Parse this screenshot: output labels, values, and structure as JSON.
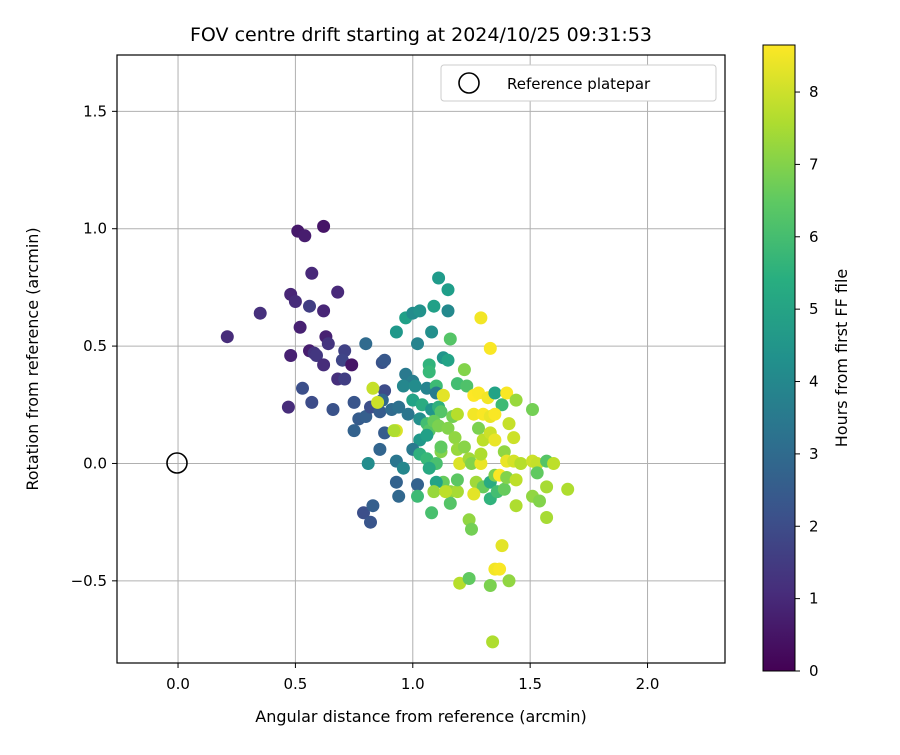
{
  "chart_data": {
    "type": "scatter",
    "title": "FOV centre drift starting at 2024/10/25 09:31:53",
    "xlabel": "Angular distance from reference (arcmin)",
    "ylabel": "Rotation from reference (arcmin)",
    "xlim": [
      -0.26,
      2.33
    ],
    "ylim": [
      -0.85,
      1.74
    ],
    "xticks": [
      "0.0",
      "0.5",
      "1.0",
      "1.5",
      "2.0"
    ],
    "xtick_values": [
      0,
      0.5,
      1.0,
      1.5,
      2.0
    ],
    "yticks": [
      "−0.5",
      "0.0",
      "0.5",
      "1.0",
      "1.5"
    ],
    "ytick_values": [
      -0.5,
      0,
      0.5,
      1.0,
      1.5
    ],
    "grid": true,
    "legend": {
      "position": "top-right",
      "entries": [
        "Reference platepar"
      ]
    },
    "reference_point": {
      "x": 0.0,
      "y": 0.0,
      "label": "Reference platepar"
    },
    "colorbar": {
      "label": "Hours from first FF file",
      "range": [
        0,
        8.65
      ],
      "ticks": [
        "0",
        "1",
        "2",
        "3",
        "4",
        "5",
        "6",
        "7",
        "8"
      ],
      "tick_values": [
        0,
        1,
        2,
        3,
        4,
        5,
        6,
        7,
        8
      ],
      "colormap": "viridis"
    },
    "points": [
      {
        "x": 0.62,
        "y": 1.01,
        "h": 0.5
      },
      {
        "x": 0.51,
        "y": 0.99,
        "h": 0.6
      },
      {
        "x": 0.54,
        "y": 0.97,
        "h": 0.7
      },
      {
        "x": 0.57,
        "y": 0.81,
        "h": 1.0
      },
      {
        "x": 0.68,
        "y": 0.73,
        "h": 1.0
      },
      {
        "x": 0.48,
        "y": 0.72,
        "h": 0.9
      },
      {
        "x": 0.5,
        "y": 0.69,
        "h": 1.1
      },
      {
        "x": 0.56,
        "y": 0.67,
        "h": 1.6
      },
      {
        "x": 0.62,
        "y": 0.65,
        "h": 0.9
      },
      {
        "x": 0.35,
        "y": 0.64,
        "h": 1.2
      },
      {
        "x": 0.52,
        "y": 0.58,
        "h": 0.8
      },
      {
        "x": 0.21,
        "y": 0.54,
        "h": 1.1
      },
      {
        "x": 0.63,
        "y": 0.54,
        "h": 0.8
      },
      {
        "x": 0.64,
        "y": 0.51,
        "h": 1.3
      },
      {
        "x": 0.56,
        "y": 0.48,
        "h": 0.7
      },
      {
        "x": 0.58,
        "y": 0.47,
        "h": 1.3
      },
      {
        "x": 0.48,
        "y": 0.46,
        "h": 0.8
      },
      {
        "x": 0.59,
        "y": 0.46,
        "h": 1.4
      },
      {
        "x": 0.71,
        "y": 0.48,
        "h": 1.7
      },
      {
        "x": 0.7,
        "y": 0.44,
        "h": 1.8
      },
      {
        "x": 0.62,
        "y": 0.42,
        "h": 1.1
      },
      {
        "x": 0.74,
        "y": 0.42,
        "h": 0.5
      },
      {
        "x": 0.68,
        "y": 0.36,
        "h": 1.2
      },
      {
        "x": 0.71,
        "y": 0.36,
        "h": 1.6
      },
      {
        "x": 0.53,
        "y": 0.32,
        "h": 2.1
      },
      {
        "x": 0.57,
        "y": 0.26,
        "h": 2.0
      },
      {
        "x": 0.47,
        "y": 0.24,
        "h": 1.1
      },
      {
        "x": 0.66,
        "y": 0.23,
        "h": 2.2
      },
      {
        "x": 0.75,
        "y": 0.26,
        "h": 2.3
      },
      {
        "x": 0.77,
        "y": 0.19,
        "h": 2.5
      },
      {
        "x": 0.8,
        "y": 0.2,
        "h": 2.6
      },
      {
        "x": 0.75,
        "y": 0.14,
        "h": 2.7
      },
      {
        "x": 0.8,
        "y": 0.51,
        "h": 3.0
      },
      {
        "x": 0.87,
        "y": 0.43,
        "h": 2.2
      },
      {
        "x": 0.88,
        "y": 0.44,
        "h": 2.4
      },
      {
        "x": 0.88,
        "y": 0.31,
        "h": 2.0
      },
      {
        "x": 0.82,
        "y": 0.24,
        "h": 2.1
      },
      {
        "x": 0.86,
        "y": 0.22,
        "h": 2.5
      },
      {
        "x": 0.87,
        "y": 0.27,
        "h": 2.9
      },
      {
        "x": 0.83,
        "y": 0.32,
        "h": 7.9
      },
      {
        "x": 0.85,
        "y": 0.26,
        "h": 8.0
      },
      {
        "x": 0.88,
        "y": 0.13,
        "h": 2.5
      },
      {
        "x": 0.91,
        "y": 0.23,
        "h": 3.0
      },
      {
        "x": 0.94,
        "y": 0.24,
        "h": 3.2
      },
      {
        "x": 0.86,
        "y": 0.06,
        "h": 2.8
      },
      {
        "x": 0.81,
        "y": 0.0,
        "h": 4.2
      },
      {
        "x": 0.79,
        "y": -0.21,
        "h": 2.1
      },
      {
        "x": 0.83,
        "y": -0.18,
        "h": 2.6
      },
      {
        "x": 0.82,
        "y": -0.25,
        "h": 2.3
      },
      {
        "x": 0.93,
        "y": 0.14,
        "h": 8.2
      },
      {
        "x": 0.92,
        "y": 0.14,
        "h": 7.6
      },
      {
        "x": 0.93,
        "y": -0.08,
        "h": 2.7
      },
      {
        "x": 0.94,
        "y": -0.14,
        "h": 2.9
      },
      {
        "x": 0.93,
        "y": 0.01,
        "h": 3.4
      },
      {
        "x": 0.96,
        "y": -0.02,
        "h": 4.0
      },
      {
        "x": 0.93,
        "y": 0.56,
        "h": 4.6
      },
      {
        "x": 0.97,
        "y": 0.62,
        "h": 4.9
      },
      {
        "x": 1.0,
        "y": 0.64,
        "h": 4.2
      },
      {
        "x": 1.03,
        "y": 0.65,
        "h": 4.4
      },
      {
        "x": 1.11,
        "y": 0.79,
        "h": 4.7
      },
      {
        "x": 1.15,
        "y": 0.74,
        "h": 4.8
      },
      {
        "x": 1.09,
        "y": 0.67,
        "h": 4.9
      },
      {
        "x": 1.15,
        "y": 0.65,
        "h": 4.1
      },
      {
        "x": 1.08,
        "y": 0.56,
        "h": 4.3
      },
      {
        "x": 1.02,
        "y": 0.51,
        "h": 3.9
      },
      {
        "x": 1.16,
        "y": 0.53,
        "h": 6.3
      },
      {
        "x": 1.13,
        "y": 0.45,
        "h": 4.5
      },
      {
        "x": 1.15,
        "y": 0.44,
        "h": 5.0
      },
      {
        "x": 1.07,
        "y": 0.42,
        "h": 5.6
      },
      {
        "x": 1.07,
        "y": 0.39,
        "h": 5.8
      },
      {
        "x": 0.97,
        "y": 0.38,
        "h": 3.5
      },
      {
        "x": 1.0,
        "y": 0.35,
        "h": 3.7
      },
      {
        "x": 0.96,
        "y": 0.33,
        "h": 4.0
      },
      {
        "x": 1.01,
        "y": 0.33,
        "h": 4.2
      },
      {
        "x": 1.06,
        "y": 0.32,
        "h": 3.9
      },
      {
        "x": 1.1,
        "y": 0.33,
        "h": 5.9
      },
      {
        "x": 1.1,
        "y": 0.3,
        "h": 3.6
      },
      {
        "x": 1.13,
        "y": 0.29,
        "h": 8.4
      },
      {
        "x": 1.19,
        "y": 0.34,
        "h": 6.0
      },
      {
        "x": 1.22,
        "y": 0.4,
        "h": 7.0
      },
      {
        "x": 1.23,
        "y": 0.33,
        "h": 6.2
      },
      {
        "x": 1.0,
        "y": 0.27,
        "h": 5.0
      },
      {
        "x": 1.04,
        "y": 0.25,
        "h": 5.3
      },
      {
        "x": 1.08,
        "y": 0.23,
        "h": 4.5
      },
      {
        "x": 1.11,
        "y": 0.24,
        "h": 5.5
      },
      {
        "x": 1.12,
        "y": 0.22,
        "h": 6.3
      },
      {
        "x": 1.13,
        "y": 0.29,
        "h": 8.3
      },
      {
        "x": 1.17,
        "y": 0.2,
        "h": 6.8
      },
      {
        "x": 0.98,
        "y": 0.21,
        "h": 3.4
      },
      {
        "x": 1.03,
        "y": 0.19,
        "h": 4.3
      },
      {
        "x": 1.06,
        "y": 0.17,
        "h": 6.0
      },
      {
        "x": 1.07,
        "y": 0.14,
        "h": 6.3
      },
      {
        "x": 1.09,
        "y": 0.18,
        "h": 6.6
      },
      {
        "x": 1.11,
        "y": 0.16,
        "h": 6.9
      },
      {
        "x": 1.15,
        "y": 0.15,
        "h": 7.0
      },
      {
        "x": 1.18,
        "y": 0.11,
        "h": 7.2
      },
      {
        "x": 1.03,
        "y": 0.1,
        "h": 4.6
      },
      {
        "x": 1.06,
        "y": 0.12,
        "h": 4.9
      },
      {
        "x": 1.0,
        "y": 0.06,
        "h": 3.5
      },
      {
        "x": 1.03,
        "y": 0.04,
        "h": 5.5
      },
      {
        "x": 1.06,
        "y": 0.02,
        "h": 5.8
      },
      {
        "x": 1.1,
        "y": 0.0,
        "h": 6.1
      },
      {
        "x": 1.07,
        "y": -0.02,
        "h": 5.2
      },
      {
        "x": 1.12,
        "y": 0.05,
        "h": 7.0
      },
      {
        "x": 1.19,
        "y": 0.06,
        "h": 7.3
      },
      {
        "x": 1.13,
        "y": -0.08,
        "h": 6.6
      },
      {
        "x": 1.16,
        "y": -0.12,
        "h": 7.2
      },
      {
        "x": 1.19,
        "y": -0.12,
        "h": 7.5
      },
      {
        "x": 1.16,
        "y": -0.17,
        "h": 6.3
      },
      {
        "x": 1.1,
        "y": -0.08,
        "h": 5.0
      },
      {
        "x": 1.02,
        "y": -0.09,
        "h": 2.7
      },
      {
        "x": 1.02,
        "y": -0.14,
        "h": 5.9
      },
      {
        "x": 1.08,
        "y": -0.21,
        "h": 6.1
      },
      {
        "x": 1.19,
        "y": -0.07,
        "h": 6.4
      },
      {
        "x": 1.2,
        "y": 0.0,
        "h": 8.2
      },
      {
        "x": 1.22,
        "y": 0.07,
        "h": 7.1
      },
      {
        "x": 1.24,
        "y": 0.02,
        "h": 7.4
      },
      {
        "x": 1.24,
        "y": -0.24,
        "h": 7.2
      },
      {
        "x": 1.25,
        "y": -0.28,
        "h": 6.8
      },
      {
        "x": 1.2,
        "y": -0.51,
        "h": 7.7
      },
      {
        "x": 1.24,
        "y": -0.49,
        "h": 6.5
      },
      {
        "x": 1.25,
        "y": 0.0,
        "h": 7.0
      },
      {
        "x": 1.27,
        "y": -0.08,
        "h": 7.4
      },
      {
        "x": 1.3,
        "y": -0.1,
        "h": 6.6
      },
      {
        "x": 1.26,
        "y": -0.13,
        "h": 8.3
      },
      {
        "x": 1.29,
        "y": 0.0,
        "h": 8.4
      },
      {
        "x": 1.29,
        "y": 0.04,
        "h": 7.6
      },
      {
        "x": 1.33,
        "y": -0.08,
        "h": 5.3
      },
      {
        "x": 1.33,
        "y": -0.15,
        "h": 5.6
      },
      {
        "x": 1.36,
        "y": -0.12,
        "h": 6.0
      },
      {
        "x": 1.35,
        "y": -0.05,
        "h": 6.9
      },
      {
        "x": 1.37,
        "y": -0.05,
        "h": 8.6
      },
      {
        "x": 1.39,
        "y": -0.11,
        "h": 6.6
      },
      {
        "x": 1.4,
        "y": -0.06,
        "h": 7.0
      },
      {
        "x": 1.44,
        "y": -0.07,
        "h": 7.8
      },
      {
        "x": 1.44,
        "y": -0.18,
        "h": 7.6
      },
      {
        "x": 1.29,
        "y": 0.62,
        "h": 8.5
      },
      {
        "x": 1.33,
        "y": 0.49,
        "h": 8.6
      },
      {
        "x": 1.26,
        "y": 0.29,
        "h": 8.7
      },
      {
        "x": 1.28,
        "y": 0.3,
        "h": 8.6
      },
      {
        "x": 1.32,
        "y": 0.28,
        "h": 8.5
      },
      {
        "x": 1.35,
        "y": 0.3,
        "h": 5.0
      },
      {
        "x": 1.38,
        "y": 0.25,
        "h": 5.9
      },
      {
        "x": 1.4,
        "y": 0.3,
        "h": 8.6
      },
      {
        "x": 1.44,
        "y": 0.27,
        "h": 7.3
      },
      {
        "x": 1.51,
        "y": 0.23,
        "h": 6.8
      },
      {
        "x": 1.26,
        "y": 0.21,
        "h": 8.5
      },
      {
        "x": 1.3,
        "y": 0.21,
        "h": 8.6
      },
      {
        "x": 1.33,
        "y": 0.2,
        "h": 8.4
      },
      {
        "x": 1.35,
        "y": 0.21,
        "h": 8.6
      },
      {
        "x": 1.28,
        "y": 0.15,
        "h": 6.9
      },
      {
        "x": 1.3,
        "y": 0.1,
        "h": 7.8
      },
      {
        "x": 1.33,
        "y": 0.13,
        "h": 8.0
      },
      {
        "x": 1.35,
        "y": 0.1,
        "h": 8.4
      },
      {
        "x": 1.41,
        "y": 0.17,
        "h": 7.9
      },
      {
        "x": 1.43,
        "y": 0.11,
        "h": 8.0
      },
      {
        "x": 1.39,
        "y": 0.05,
        "h": 7.2
      },
      {
        "x": 1.4,
        "y": 0.01,
        "h": 8.4
      },
      {
        "x": 1.43,
        "y": 0.01,
        "h": 8.1
      },
      {
        "x": 1.46,
        "y": 0.0,
        "h": 7.7
      },
      {
        "x": 1.51,
        "y": 0.01,
        "h": 8.0
      },
      {
        "x": 1.53,
        "y": 0.0,
        "h": 7.9
      },
      {
        "x": 1.57,
        "y": 0.01,
        "h": 6.3
      },
      {
        "x": 1.6,
        "y": 0.0,
        "h": 7.8
      },
      {
        "x": 1.53,
        "y": -0.04,
        "h": 6.5
      },
      {
        "x": 1.57,
        "y": -0.1,
        "h": 7.5
      },
      {
        "x": 1.66,
        "y": -0.11,
        "h": 7.6
      },
      {
        "x": 1.51,
        "y": -0.14,
        "h": 7.2
      },
      {
        "x": 1.54,
        "y": -0.16,
        "h": 7.0
      },
      {
        "x": 1.57,
        "y": -0.23,
        "h": 7.5
      },
      {
        "x": 1.38,
        "y": -0.35,
        "h": 8.3
      },
      {
        "x": 1.35,
        "y": -0.45,
        "h": 8.5
      },
      {
        "x": 1.37,
        "y": -0.45,
        "h": 8.6
      },
      {
        "x": 1.33,
        "y": -0.52,
        "h": 6.9
      },
      {
        "x": 1.41,
        "y": -0.5,
        "h": 7.2
      },
      {
        "x": 1.34,
        "y": -0.76,
        "h": 7.6
      },
      {
        "x": 1.09,
        "y": -0.12,
        "h": 7.3
      },
      {
        "x": 1.14,
        "y": -0.12,
        "h": 7.8
      },
      {
        "x": 1.19,
        "y": 0.21,
        "h": 7.7
      },
      {
        "x": 1.12,
        "y": 0.07,
        "h": 6.5
      }
    ]
  }
}
